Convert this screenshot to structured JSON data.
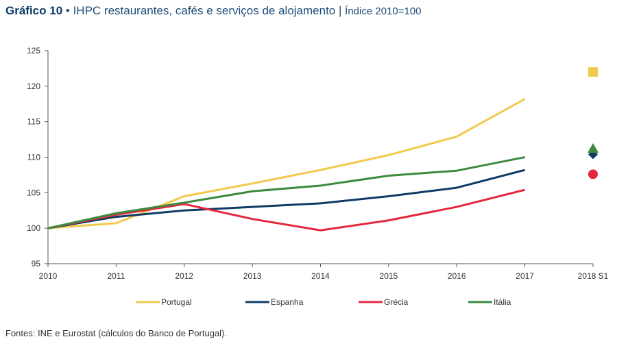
{
  "title": {
    "number": "Gráfico 10",
    "bullet": "•",
    "text": "IHPC restaurantes, cafés e serviços de alojamento",
    "separator": "|",
    "subtitle": "Índice 2010=100"
  },
  "source": "Fontes: INE e Eurostat (cálculos do Banco de Portugal).",
  "chart_data": {
    "type": "line",
    "title": "IHPC restaurantes, cafés e serviços de alojamento",
    "ylabel": "Índice 2010=100",
    "ylim": [
      95,
      125
    ],
    "yticks": [
      95,
      100,
      105,
      110,
      115,
      120,
      125
    ],
    "categories": [
      "2010",
      "2011",
      "2012",
      "2013",
      "2014",
      "2015",
      "2016",
      "2017",
      "2018 S1"
    ],
    "grid": false,
    "legend": "bottom",
    "series": [
      {
        "name": "Portugal",
        "color": "#f2c94c",
        "marker": "square",
        "values": [
          100.0,
          100.7,
          104.5,
          106.3,
          108.2,
          110.3,
          112.9,
          118.2,
          122.0
        ]
      },
      {
        "name": "Espanha",
        "color": "#0d3a66",
        "marker": "diamond",
        "values": [
          100.0,
          101.6,
          102.5,
          103.0,
          103.5,
          104.5,
          105.7,
          108.2,
          110.4
        ]
      },
      {
        "name": "Grécia",
        "color": "#e3283e",
        "marker": "circle",
        "values": [
          100.0,
          101.9,
          103.4,
          101.3,
          99.7,
          101.1,
          103.0,
          105.4,
          107.6
        ]
      },
      {
        "name": "Itália",
        "color": "#3b8a3e",
        "marker": "triangle",
        "values": [
          100.0,
          102.1,
          103.6,
          105.2,
          106.0,
          107.4,
          108.1,
          110.0,
          111.2
        ]
      }
    ]
  }
}
